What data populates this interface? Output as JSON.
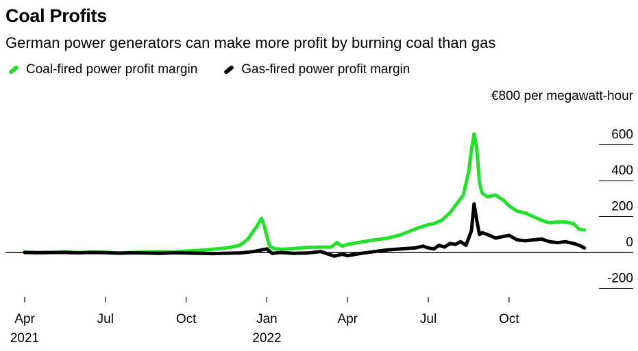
{
  "title": "Coal Profits",
  "subtitle": "German power generators can make more profit by burning coal than gas",
  "chart_data": {
    "type": "line",
    "title": "Coal Profits",
    "subtitle": "German power generators can make more profit by burning coal than gas",
    "ylabel": "€800 per megawatt-hour",
    "ylim": [
      -200,
      800
    ],
    "yticks": [
      {
        "value": 600,
        "label": "600"
      },
      {
        "value": 400,
        "label": "400"
      },
      {
        "value": 200,
        "label": "200"
      },
      {
        "value": 0,
        "label": "0"
      },
      {
        "value": -200,
        "label": "-200"
      }
    ],
    "xlim": [
      0,
      21.0
    ],
    "xticks": [
      {
        "value": 0,
        "label": "Apr",
        "sublabel": "2021"
      },
      {
        "value": 3,
        "label": "Jul",
        "sublabel": ""
      },
      {
        "value": 6,
        "label": "Oct",
        "sublabel": ""
      },
      {
        "value": 9,
        "label": "Jan",
        "sublabel": "2022"
      },
      {
        "value": 12,
        "label": "Apr",
        "sublabel": ""
      },
      {
        "value": 15,
        "label": "Jul",
        "sublabel": ""
      },
      {
        "value": 18,
        "label": "Oct",
        "sublabel": ""
      }
    ],
    "x_unit": "months since Apr 2021",
    "series": [
      {
        "name": "Coal-fired power profit margin",
        "color": "#22e12a",
        "x": [
          0,
          0.5,
          1,
          1.5,
          2,
          2.5,
          3,
          3.5,
          4,
          4.5,
          5,
          5.5,
          6,
          6.5,
          7,
          7.5,
          8,
          8.3,
          8.6,
          8.8,
          8.9,
          9.0,
          9.1,
          9.3,
          9.6,
          10,
          10.5,
          11,
          11.4,
          11.6,
          11.8,
          12,
          12.5,
          13,
          13.5,
          14,
          14.5,
          14.8,
          15.0,
          15.2,
          15.5,
          15.8,
          16.0,
          16.3,
          16.5,
          16.6,
          16.7,
          16.8,
          16.9,
          17.0,
          17.2,
          17.5,
          17.8,
          18.0,
          18.3,
          18.6,
          18.9,
          19.2,
          19.5,
          19.8,
          20.1,
          20.4,
          20.6,
          20.8
        ],
        "values": [
          2,
          -2,
          0,
          3,
          -1,
          2,
          1,
          -3,
          0,
          3,
          5,
          3,
          8,
          12,
          18,
          25,
          40,
          75,
          140,
          190,
          150,
          90,
          35,
          20,
          18,
          22,
          28,
          30,
          30,
          55,
          35,
          45,
          58,
          70,
          80,
          100,
          130,
          145,
          155,
          160,
          180,
          220,
          260,
          320,
          450,
          570,
          660,
          580,
          390,
          330,
          310,
          320,
          290,
          260,
          230,
          220,
          200,
          180,
          165,
          170,
          170,
          160,
          130,
          125
        ]
      },
      {
        "name": "Gas-fired power profit margin",
        "color": "#000000",
        "x": [
          0,
          0.5,
          1,
          1.5,
          2,
          2.5,
          3,
          3.5,
          4,
          4.5,
          5,
          5.5,
          6,
          6.5,
          7,
          7.5,
          8,
          8.5,
          9.0,
          9.2,
          9.5,
          10,
          10.5,
          11,
          11.5,
          11.8,
          12,
          12.5,
          13,
          13.5,
          14,
          14.5,
          14.8,
          15.0,
          15.2,
          15.4,
          15.6,
          15.8,
          16.0,
          16.2,
          16.4,
          16.6,
          16.7,
          16.8,
          16.9,
          17.0,
          17.2,
          17.5,
          17.8,
          18.0,
          18.3,
          18.6,
          18.9,
          19.2,
          19.5,
          19.8,
          20.1,
          20.4,
          20.6,
          20.8
        ],
        "values": [
          0,
          -1,
          0,
          0,
          -2,
          0,
          -1,
          -4,
          -2,
          -3,
          -5,
          -2,
          -3,
          -5,
          -6,
          -4,
          -3,
          5,
          20,
          -5,
          0,
          -5,
          -3,
          5,
          -20,
          -10,
          -18,
          -5,
          5,
          15,
          20,
          25,
          35,
          25,
          20,
          40,
          30,
          50,
          45,
          60,
          40,
          120,
          270,
          180,
          100,
          110,
          100,
          80,
          90,
          95,
          70,
          65,
          70,
          75,
          60,
          55,
          60,
          50,
          40,
          25
        ]
      }
    ]
  }
}
